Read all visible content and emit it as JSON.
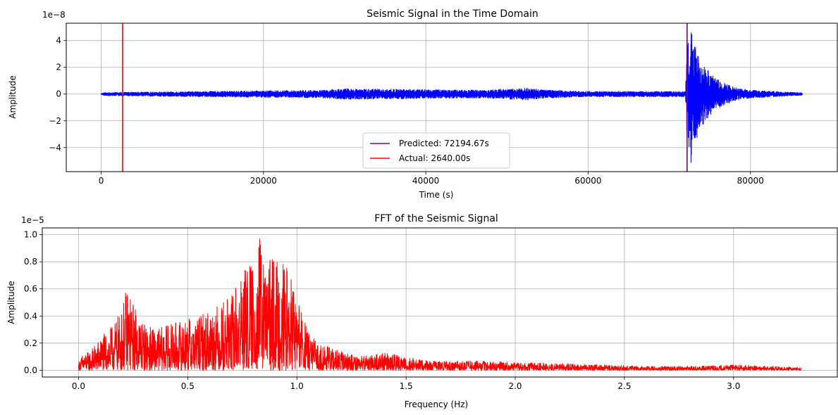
{
  "chart_data": [
    {
      "type": "line",
      "title": "Seismic Signal in the Time Domain",
      "xlabel": "Time (s)",
      "ylabel": "Amplitude",
      "y_offset_label": "1e−8",
      "xlim": [
        -4300,
        90700
      ],
      "ylim": [
        -5.8,
        5.3
      ],
      "xticks": [
        0,
        20000,
        40000,
        60000,
        80000
      ],
      "xtick_labels": [
        "0",
        "20000",
        "40000",
        "60000",
        "80000"
      ],
      "yticks": [
        -4,
        -2,
        0,
        2,
        4
      ],
      "ytick_labels": [
        "−4",
        "−2",
        "0",
        "2",
        "4"
      ],
      "grid": true,
      "legend_position": "lower center",
      "series": [
        {
          "color": "#0000ff",
          "envelope": {
            "x": [
              0,
              500,
              10000,
              27500,
              29700,
              47000,
              52500,
              55000,
              60000,
              72000,
              72150,
              72400,
              72700,
              73000,
              73400,
              73800,
              74500,
              75500,
              76500,
              78000,
              80000,
              83000,
              86400
            ],
            "upper": [
              0.05,
              0.12,
              0.18,
              0.3,
              0.4,
              0.3,
              0.45,
              0.3,
              0.2,
              0.2,
              3.5,
              4.3,
              4.8,
              4.2,
              3.3,
              2.6,
              2.0,
              1.3,
              0.9,
              0.5,
              0.3,
              0.2,
              0.1
            ],
            "lower": [
              -0.05,
              -0.12,
              -0.18,
              -0.3,
              -0.4,
              -0.3,
              -0.45,
              -0.3,
              -0.2,
              -0.2,
              -3.2,
              -4.0,
              -5.3,
              -4.2,
              -3.3,
              -2.6,
              -2.0,
              -1.3,
              -0.9,
              -0.5,
              -0.3,
              -0.2,
              -0.1
            ]
          }
        }
      ],
      "vlines": [
        {
          "x": 72194.67,
          "color": "#800080",
          "label": "Predicted: 72194.67s"
        },
        {
          "x": 2640.0,
          "color": "#ff0000",
          "label": "Actual: 2640.00s"
        }
      ]
    },
    {
      "type": "line",
      "title": "FFT of the Seismic Signal",
      "xlabel": "Frequency (Hz)",
      "ylabel": "Amplitude",
      "y_offset_label": "1e−5",
      "xlim": [
        -0.166,
        3.475
      ],
      "ylim": [
        -0.05,
        1.05
      ],
      "xticks": [
        0.0,
        0.5,
        1.0,
        1.5,
        2.0,
        2.5,
        3.0
      ],
      "xtick_labels": [
        "0.0",
        "0.5",
        "1.0",
        "1.5",
        "2.0",
        "2.5",
        "3.0"
      ],
      "yticks": [
        0.0,
        0.2,
        0.4,
        0.6,
        0.8,
        1.0
      ],
      "ytick_labels": [
        "0.0",
        "0.2",
        "0.4",
        "0.6",
        "0.8",
        "1.0"
      ],
      "grid": true,
      "series": [
        {
          "color": "#ff0000",
          "envelope": {
            "x": [
              0.0,
              0.02,
              0.05,
              0.1,
              0.15,
              0.2,
              0.22,
              0.25,
              0.3,
              0.35,
              0.4,
              0.45,
              0.5,
              0.55,
              0.6,
              0.65,
              0.7,
              0.75,
              0.8,
              0.83,
              0.85,
              0.9,
              0.95,
              1.0,
              1.05,
              1.1,
              1.2,
              1.3,
              1.4,
              1.5,
              1.6,
              1.8,
              2.0,
              2.2,
              2.4,
              2.6,
              2.8,
              3.0,
              3.2,
              3.31
            ],
            "upper": [
              0.06,
              0.12,
              0.14,
              0.24,
              0.32,
              0.45,
              0.62,
              0.5,
              0.35,
              0.3,
              0.33,
              0.36,
              0.38,
              0.4,
              0.45,
              0.5,
              0.55,
              0.75,
              0.8,
              1.0,
              0.82,
              0.83,
              0.78,
              0.56,
              0.28,
              0.2,
              0.14,
              0.11,
              0.13,
              0.1,
              0.07,
              0.07,
              0.06,
              0.05,
              0.04,
              0.03,
              0.03,
              0.04,
              0.03,
              0.02
            ]
          }
        }
      ]
    }
  ]
}
